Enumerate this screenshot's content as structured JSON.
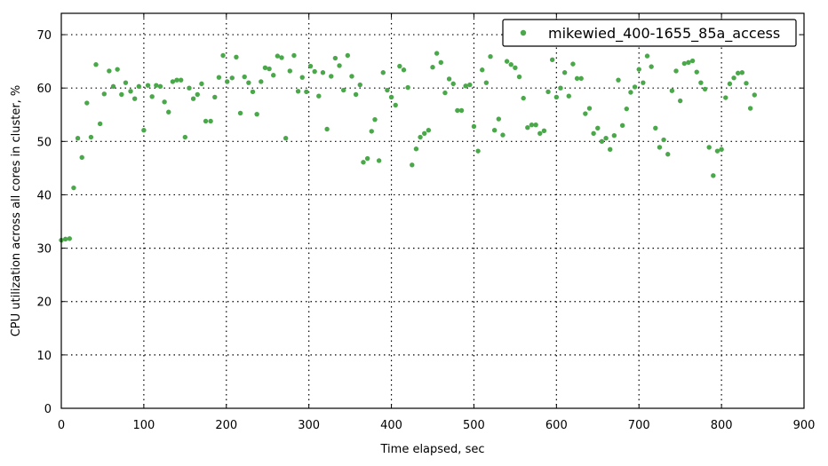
{
  "chart_data": {
    "type": "scatter",
    "xlabel": "Time elapsed, sec",
    "ylabel": "CPU utilization across all cores in cluster, %",
    "xlim": [
      0,
      900
    ],
    "ylim": [
      0,
      74
    ],
    "xticks": [
      0,
      100,
      200,
      300,
      400,
      500,
      600,
      700,
      800,
      900
    ],
    "yticks": [
      0,
      10,
      20,
      30,
      40,
      50,
      60,
      70
    ],
    "grid": true,
    "legend_position": "top-right",
    "series": [
      {
        "name": "mikewied_400-1655_85a_access",
        "color": "#4aa84a",
        "points": [
          [
            0,
            31.5
          ],
          [
            5,
            31.7
          ],
          [
            10,
            31.8
          ],
          [
            15,
            41.3
          ],
          [
            20,
            50.6
          ],
          [
            25,
            47.0
          ],
          [
            31,
            57.2
          ],
          [
            36,
            50.8
          ],
          [
            42,
            64.4
          ],
          [
            47,
            53.3
          ],
          [
            52,
            58.9
          ],
          [
            58,
            63.2
          ],
          [
            63,
            60.3
          ],
          [
            68,
            63.5
          ],
          [
            73,
            58.8
          ],
          [
            78,
            61.0
          ],
          [
            84,
            59.4
          ],
          [
            89,
            58.0
          ],
          [
            94,
            60.3
          ],
          [
            100,
            52.1
          ],
          [
            105,
            60.5
          ],
          [
            110,
            58.4
          ],
          [
            115,
            60.5
          ],
          [
            120,
            60.3
          ],
          [
            125,
            57.4
          ],
          [
            130,
            55.5
          ],
          [
            135,
            61.2
          ],
          [
            140,
            61.5
          ],
          [
            145,
            61.5
          ],
          [
            150,
            50.8
          ],
          [
            155,
            60.0
          ],
          [
            160,
            58.0
          ],
          [
            165,
            58.8
          ],
          [
            170,
            60.8
          ],
          [
            175,
            53.8
          ],
          [
            181,
            53.8
          ],
          [
            186,
            58.3
          ],
          [
            191,
            62.0
          ],
          [
            196,
            66.1
          ],
          [
            201,
            61.2
          ],
          [
            207,
            61.9
          ],
          [
            212,
            65.8
          ],
          [
            217,
            55.3
          ],
          [
            222,
            62.1
          ],
          [
            227,
            61.0
          ],
          [
            232,
            59.3
          ],
          [
            237,
            55.1
          ],
          [
            242,
            61.2
          ],
          [
            247,
            63.8
          ],
          [
            252,
            63.6
          ],
          [
            257,
            62.4
          ],
          [
            262,
            66.0
          ],
          [
            267,
            65.7
          ],
          [
            272,
            50.6
          ],
          [
            277,
            63.2
          ],
          [
            282,
            66.1
          ],
          [
            287,
            59.4
          ],
          [
            292,
            62.0
          ],
          [
            297,
            59.3
          ],
          [
            302,
            64.1
          ],
          [
            307,
            63.1
          ],
          [
            312,
            58.5
          ],
          [
            317,
            62.9
          ],
          [
            322,
            52.3
          ],
          [
            327,
            62.2
          ],
          [
            332,
            65.6
          ],
          [
            337,
            64.2
          ],
          [
            342,
            59.6
          ],
          [
            347,
            66.1
          ],
          [
            352,
            62.2
          ],
          [
            357,
            58.8
          ],
          [
            362,
            60.6
          ],
          [
            366,
            46.1
          ],
          [
            371,
            46.8
          ],
          [
            376,
            51.9
          ],
          [
            380,
            54.1
          ],
          [
            385,
            46.4
          ],
          [
            390,
            62.9
          ],
          [
            395,
            59.6
          ],
          [
            400,
            58.3
          ],
          [
            405,
            56.8
          ],
          [
            410,
            64.1
          ],
          [
            415,
            63.4
          ],
          [
            420,
            60.1
          ],
          [
            425,
            45.6
          ],
          [
            430,
            48.6
          ],
          [
            435,
            50.8
          ],
          [
            440,
            51.5
          ],
          [
            445,
            52.1
          ],
          [
            450,
            63.9
          ],
          [
            455,
            66.5
          ],
          [
            460,
            64.8
          ],
          [
            465,
            59.1
          ],
          [
            470,
            61.7
          ],
          [
            475,
            60.8
          ],
          [
            480,
            55.8
          ],
          [
            485,
            55.8
          ],
          [
            490,
            60.4
          ],
          [
            495,
            60.6
          ],
          [
            500,
            52.8
          ],
          [
            505,
            48.2
          ],
          [
            510,
            63.4
          ],
          [
            515,
            61.0
          ],
          [
            520,
            65.9
          ],
          [
            525,
            52.1
          ],
          [
            530,
            54.2
          ],
          [
            535,
            51.2
          ],
          [
            540,
            65.0
          ],
          [
            545,
            64.4
          ],
          [
            550,
            63.8
          ],
          [
            555,
            62.1
          ],
          [
            560,
            58.1
          ],
          [
            565,
            52.6
          ],
          [
            570,
            53.1
          ],
          [
            575,
            53.1
          ],
          [
            580,
            51.5
          ],
          [
            585,
            52.0
          ],
          [
            590,
            59.3
          ],
          [
            595,
            65.3
          ],
          [
            600,
            58.3
          ],
          [
            605,
            60.0
          ],
          [
            610,
            62.9
          ],
          [
            615,
            58.5
          ],
          [
            620,
            64.5
          ],
          [
            625,
            61.8
          ],
          [
            630,
            61.8
          ],
          [
            635,
            55.2
          ],
          [
            640,
            56.2
          ],
          [
            645,
            51.5
          ],
          [
            650,
            52.5
          ],
          [
            655,
            50.0
          ],
          [
            660,
            50.6
          ],
          [
            665,
            48.5
          ],
          [
            670,
            51.1
          ],
          [
            675,
            61.5
          ],
          [
            680,
            53.0
          ],
          [
            685,
            56.1
          ],
          [
            690,
            59.2
          ],
          [
            695,
            60.2
          ],
          [
            700,
            63.5
          ],
          [
            705,
            61.0
          ],
          [
            710,
            66.0
          ],
          [
            715,
            64.0
          ],
          [
            720,
            52.5
          ],
          [
            725,
            48.9
          ],
          [
            730,
            50.3
          ],
          [
            735,
            47.6
          ],
          [
            740,
            59.5
          ],
          [
            745,
            63.2
          ],
          [
            750,
            57.6
          ],
          [
            755,
            64.6
          ],
          [
            760,
            64.8
          ],
          [
            765,
            65.1
          ],
          [
            770,
            63.0
          ],
          [
            775,
            61.0
          ],
          [
            780,
            59.8
          ],
          [
            785,
            48.9
          ],
          [
            790,
            43.6
          ],
          [
            795,
            48.2
          ],
          [
            800,
            48.5
          ],
          [
            805,
            58.2
          ],
          [
            810,
            60.8
          ],
          [
            815,
            61.9
          ],
          [
            820,
            62.8
          ],
          [
            825,
            62.9
          ],
          [
            830,
            60.9
          ],
          [
            835,
            56.2
          ],
          [
            840,
            58.7
          ]
        ]
      }
    ]
  }
}
